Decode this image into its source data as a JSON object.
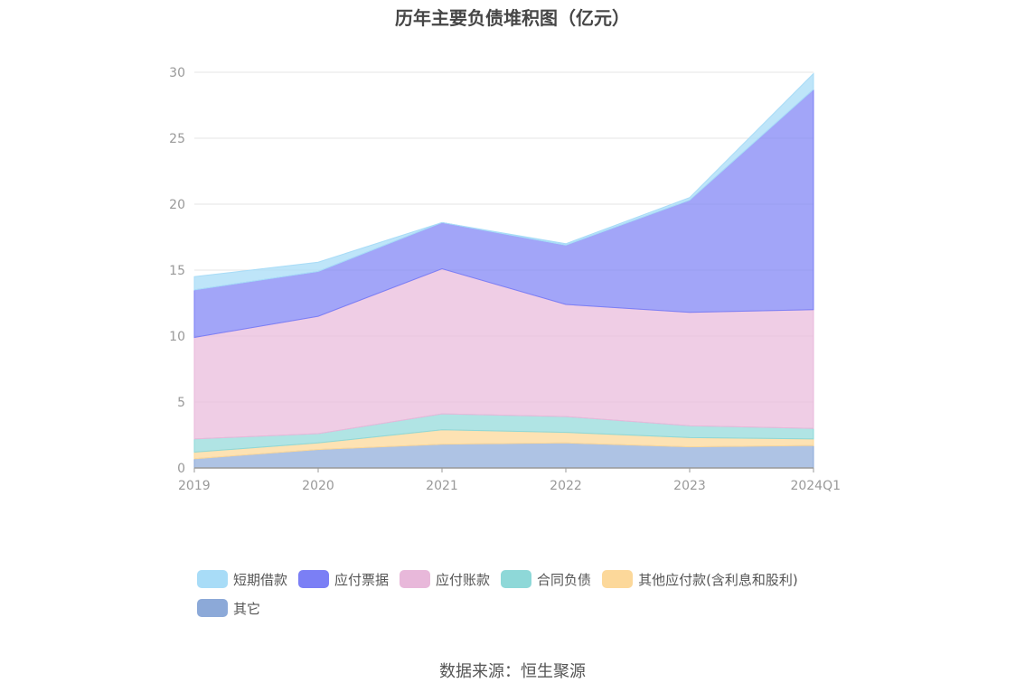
{
  "title": "历年主要负债堆积图（亿元）",
  "source": "数据来源：恒生聚源",
  "colors": {
    "短期借款": "#a8dcf7",
    "应付票据": "#7b7ff5",
    "应付账款": "#e8b8da",
    "合同负债": "#8ed8d8",
    "其他应付款": "#fcd89a",
    "其它": "#8ca9d8"
  },
  "chart_data": {
    "type": "area",
    "stacked": true,
    "title": "历年主要负债堆积图（亿元）",
    "x": [
      "2019",
      "2020",
      "2021",
      "2022",
      "2023",
      "2024Q1"
    ],
    "ylim": [
      0,
      30
    ],
    "yticks": [
      0,
      5,
      10,
      15,
      20,
      25,
      30
    ],
    "grid": true,
    "legend_position": "bottom",
    "series": [
      {
        "name": "其它",
        "values": [
          0.7,
          1.4,
          1.8,
          1.9,
          1.6,
          1.7
        ]
      },
      {
        "name": "其他应付款(含利息和股利)",
        "values": [
          0.5,
          0.5,
          1.1,
          0.8,
          0.7,
          0.5
        ]
      },
      {
        "name": "合同负债",
        "values": [
          1.0,
          0.7,
          1.2,
          1.2,
          0.9,
          0.8
        ]
      },
      {
        "name": "应付账款",
        "values": [
          7.7,
          8.9,
          11.0,
          8.5,
          8.6,
          9.0
        ]
      },
      {
        "name": "应付票据",
        "values": [
          3.6,
          3.4,
          3.5,
          4.5,
          8.5,
          16.7
        ]
      },
      {
        "name": "短期借款",
        "values": [
          1.0,
          0.7,
          0.0,
          0.1,
          0.2,
          1.2
        ]
      }
    ]
  },
  "legend": [
    {
      "label": "短期借款",
      "color": "#a8dcf7"
    },
    {
      "label": "应付票据",
      "color": "#7b7ff5"
    },
    {
      "label": "应付账款",
      "color": "#e8b8da"
    },
    {
      "label": "合同负债",
      "color": "#8ed8d8"
    },
    {
      "label": "其他应付款(含利息和股利)",
      "color": "#fcd89a"
    },
    {
      "label": "其它",
      "color": "#8ca9d8"
    }
  ]
}
